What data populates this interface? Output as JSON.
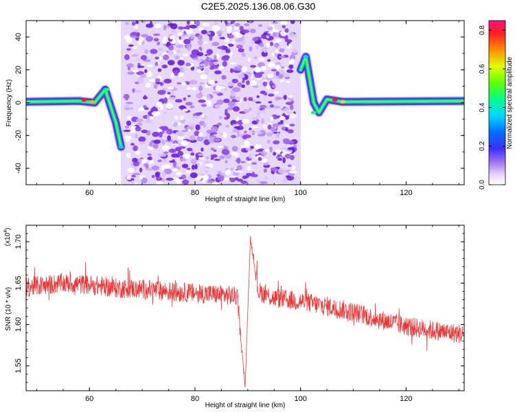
{
  "title": "C2E5.2025.136.08.06.G30",
  "colors": {
    "snr_line": "#ee3333",
    "axis": "#000000",
    "noise_light": "#e6d7fb",
    "noise_dark": "#8a2be2"
  },
  "chart_data": [
    {
      "type": "heatmap",
      "xlabel": "Height of straight line (km)",
      "ylabel": "Frequency (Hz)",
      "xlim": [
        48,
        131
      ],
      "ylim": [
        -50,
        50
      ],
      "x_ticks": [
        "60",
        "80",
        "100",
        "120"
      ],
      "x_tick_values": [
        60,
        80,
        100,
        120
      ],
      "y_ticks": [
        "-40",
        "-20",
        "0",
        "20",
        "40"
      ],
      "y_tick_values": [
        -40,
        -20,
        0,
        20,
        40
      ],
      "noise_region_km": [
        67,
        99
      ],
      "signal_track": {
        "left": [
          [
            48,
            0.5
          ],
          [
            58,
            1
          ],
          [
            61,
            0
          ],
          [
            63,
            8
          ],
          [
            65,
            -12
          ],
          [
            66,
            -27
          ]
        ],
        "right": [
          [
            100,
            20
          ],
          [
            101,
            28
          ],
          [
            102.5,
            0
          ],
          [
            103.5,
            -6
          ],
          [
            105,
            2
          ],
          [
            108,
            0.5
          ],
          [
            131,
            1
          ]
        ]
      },
      "colorbar": {
        "label": "Normalized spectral amplitude",
        "ticks": [
          "0.0",
          "0.2",
          "0.4",
          "0.6",
          "0.8"
        ],
        "tick_values": [
          0,
          0.2,
          0.4,
          0.6,
          0.8
        ],
        "range": [
          0,
          0.85
        ]
      }
    },
    {
      "type": "line",
      "xlabel": "Height of straight line (km)",
      "ylabel": "SNR (10 * v/v)",
      "y_multiplier": "(x10",
      "y_multiplier_exp": "4",
      "y_multiplier_close": ")",
      "xlim": [
        48,
        131
      ],
      "ylim": [
        1.52,
        1.72
      ],
      "x_ticks": [
        "60",
        "80",
        "100",
        "120"
      ],
      "x_tick_values": [
        60,
        80,
        100,
        120
      ],
      "y_ticks": [
        "1.55",
        "1.60",
        "1.65",
        "1.70"
      ],
      "y_tick_values": [
        1.55,
        1.6,
        1.65,
        1.7
      ],
      "series": [
        {
          "trend_x": [
            48,
            55,
            60,
            65,
            70,
            75,
            80,
            85,
            88,
            89.5,
            90.5,
            92,
            95,
            100,
            105,
            110,
            115,
            120,
            125,
            131
          ],
          "trend_y": [
            1.645,
            1.65,
            1.648,
            1.644,
            1.643,
            1.64,
            1.638,
            1.636,
            1.634,
            1.525,
            1.705,
            1.64,
            1.632,
            1.628,
            1.622,
            1.615,
            1.606,
            1.598,
            1.593,
            1.588
          ],
          "noise_amplitude": 0.012
        }
      ]
    }
  ]
}
